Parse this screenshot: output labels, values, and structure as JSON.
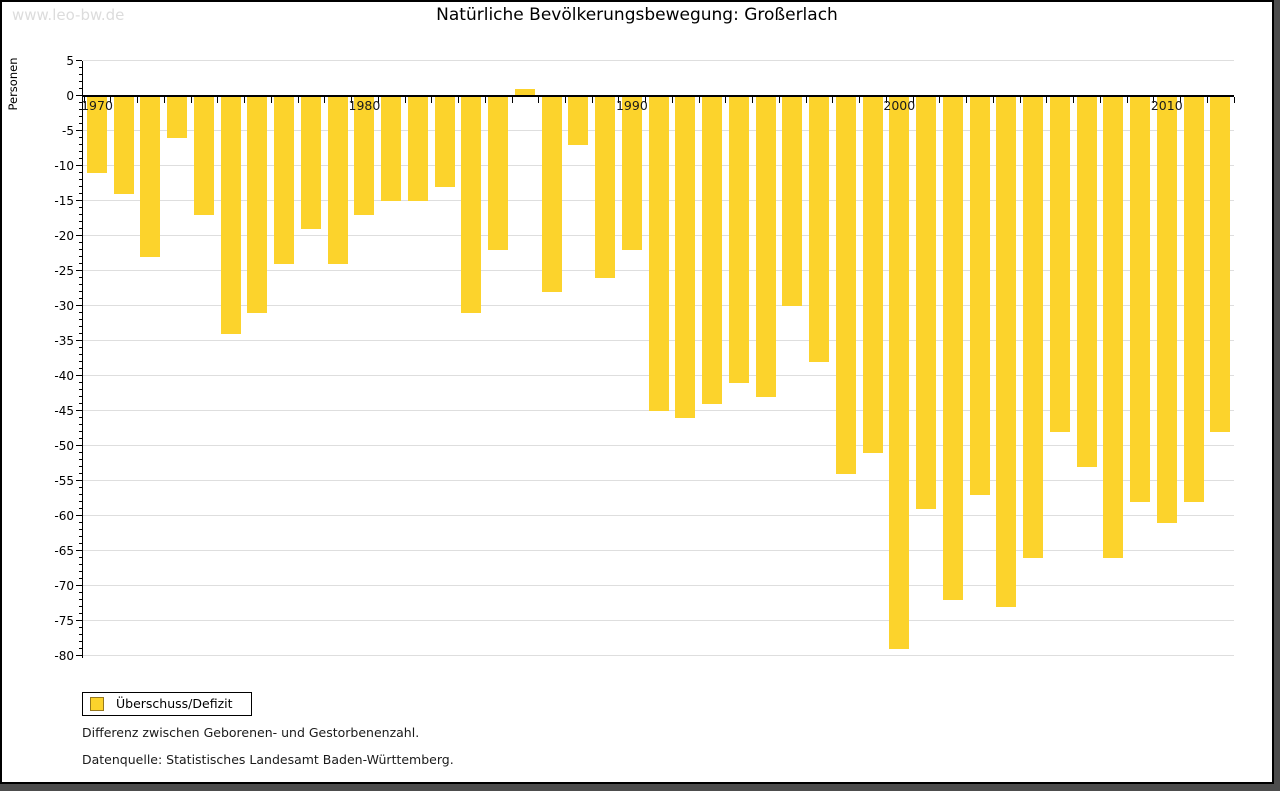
{
  "watermark": "www.leo-bw.de",
  "title": "Natürliche Bevölkerungsbewegung: Großerlach",
  "legend": {
    "label": "Überschuss/Defizit"
  },
  "footnotes": {
    "line1": "Differenz zwischen Geborenen- und Gestorbenenzahl.",
    "line2": "Datenquelle: Statistisches Landesamt Baden-Württemberg."
  },
  "colors": {
    "bar": "#fcd32c",
    "legend_swatch_border": "#96781e",
    "gridline": "#dedede",
    "axis": "#000000",
    "watermark_text": "#dcdcdc",
    "frame_shadow": "#4d4d4d"
  },
  "chart_data": {
    "type": "bar",
    "title": "Natürliche Bevölkerungsbewegung: Großerlach",
    "xlabel": "",
    "ylabel": "Personen",
    "ylim": [
      -80,
      5
    ],
    "y_major_step": 5,
    "y_minor_step": 1,
    "grid": true,
    "legend_position": "bottom-left",
    "y_ticks": [
      5,
      0,
      -5,
      -10,
      -15,
      -20,
      -25,
      -30,
      -35,
      -40,
      -45,
      -50,
      -55,
      -60,
      -65,
      -70,
      -75,
      -80
    ],
    "x_labeled_years": [
      "1970",
      "1980",
      "1990",
      "2000",
      "2010"
    ],
    "categories": [
      1970,
      1971,
      1972,
      1973,
      1974,
      1975,
      1976,
      1977,
      1978,
      1979,
      1980,
      1981,
      1982,
      1983,
      1984,
      1985,
      1986,
      1987,
      1988,
      1989,
      1990,
      1991,
      1992,
      1993,
      1994,
      1995,
      1996,
      1997,
      1998,
      1999,
      2000,
      2001,
      2002,
      2003,
      2004,
      2005,
      2006,
      2007,
      2008,
      2009,
      2010,
      2011,
      2012
    ],
    "series": [
      {
        "name": "Überschuss/Defizit",
        "values": [
          -11,
          -14,
          -23,
          -6,
          -17,
          -34,
          -31,
          -24,
          -19,
          -24,
          -17,
          -15,
          -15,
          -13,
          -31,
          -22,
          1,
          -28,
          -7,
          -26,
          -22,
          -45,
          -46,
          -44,
          -41,
          -43,
          -30,
          -38,
          -54,
          -51,
          -79,
          -59,
          -72,
          -57,
          -73,
          -66,
          -48,
          -53,
          -66,
          -58,
          -61,
          -58,
          -48
        ]
      }
    ]
  }
}
